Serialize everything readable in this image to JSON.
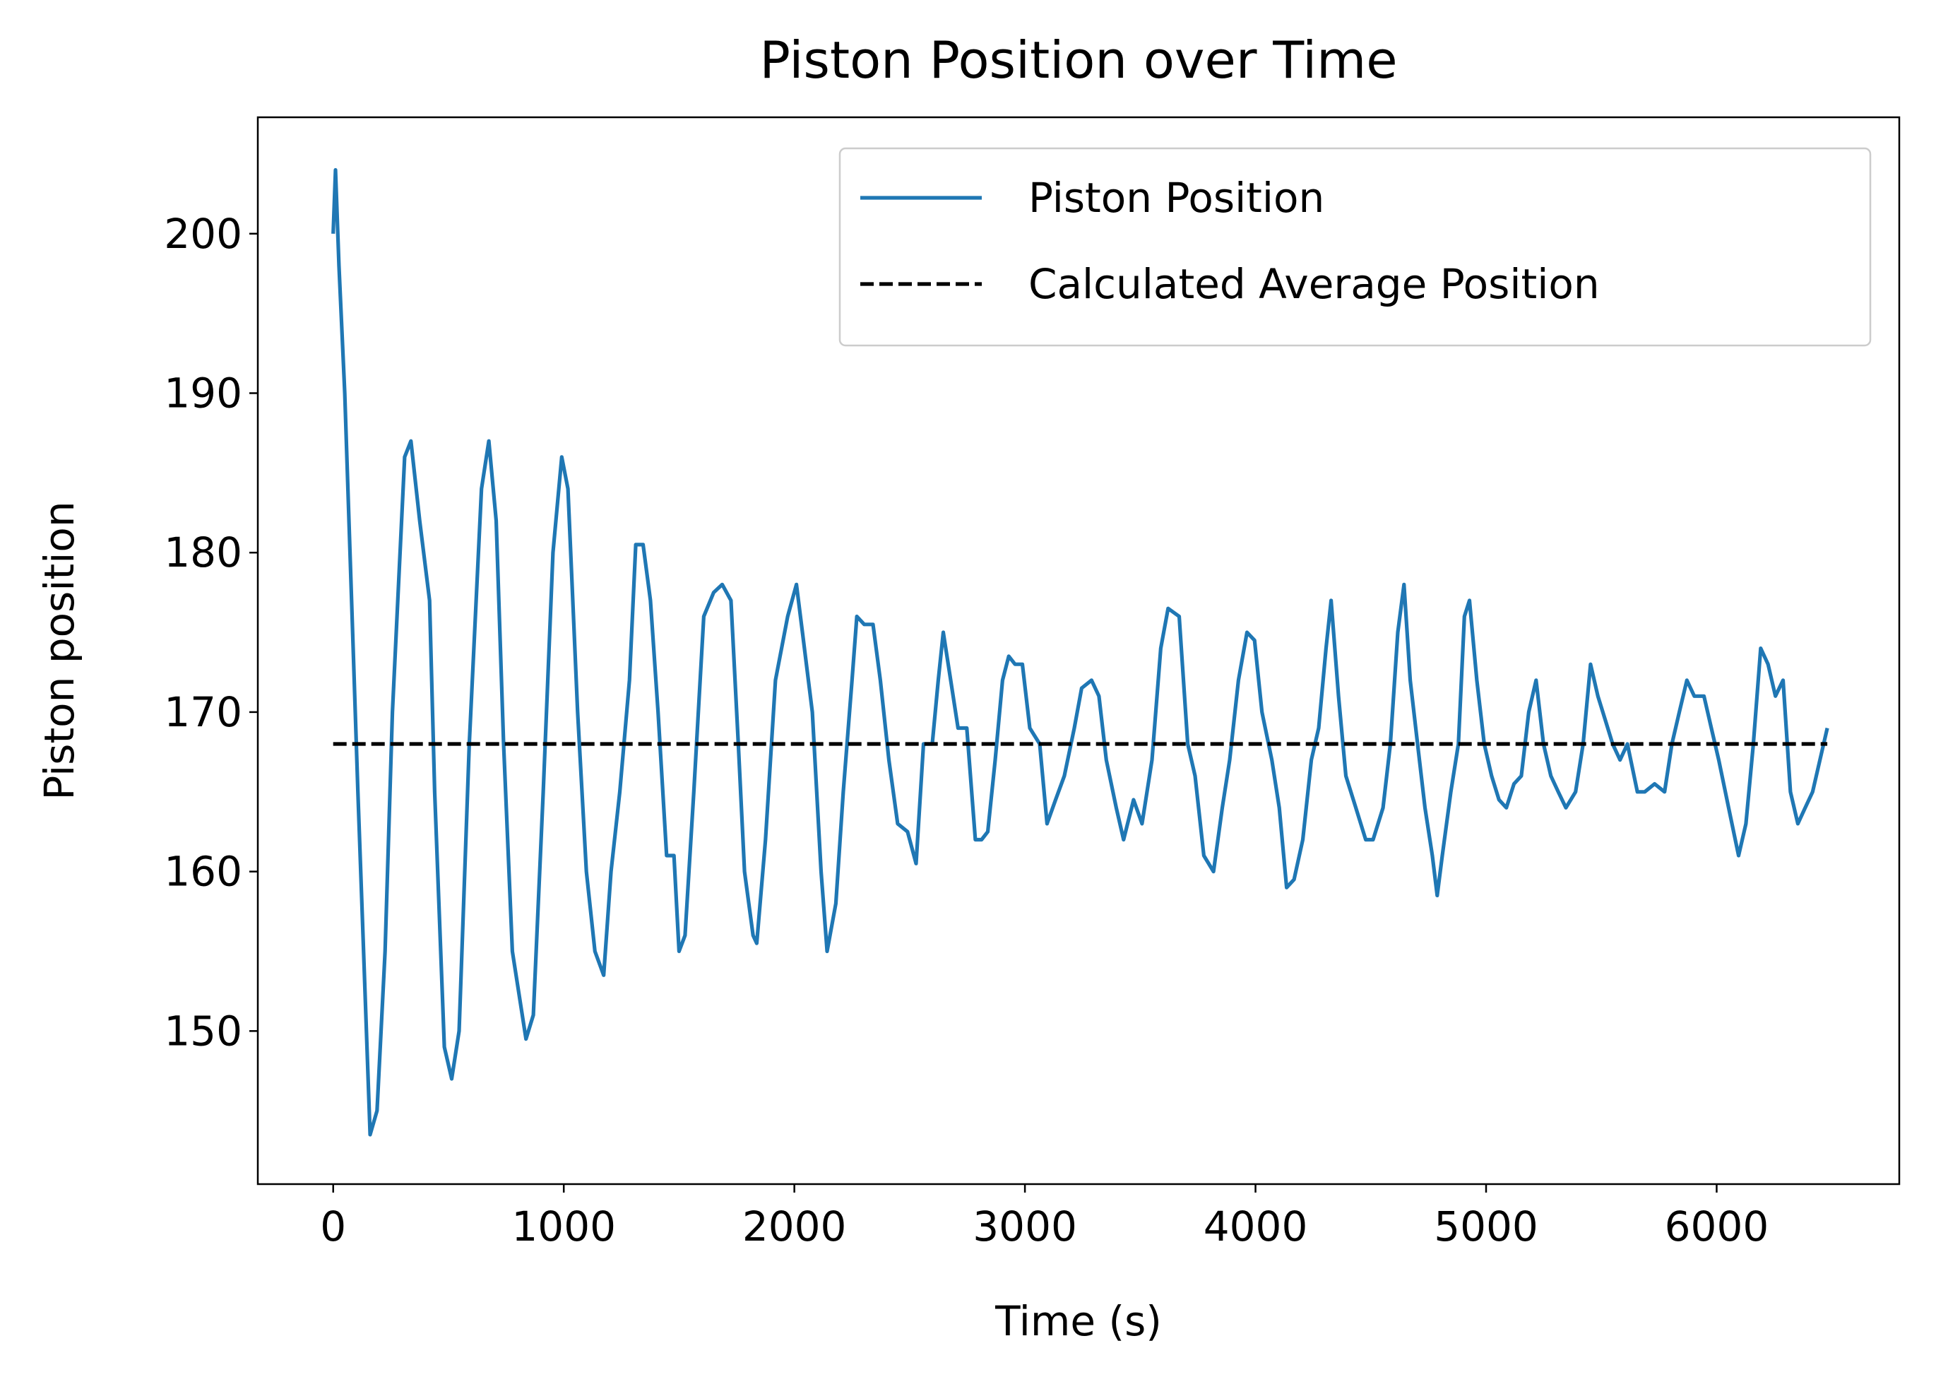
{
  "chart_data": {
    "type": "line",
    "title": "Piston Position over Time",
    "xlabel": "Time (s)",
    "ylabel": "Piston position",
    "xlim": [
      -327,
      6792
    ],
    "ylim": [
      140.4,
      207.3
    ],
    "xticks": [
      0,
      1000,
      2000,
      3000,
      4000,
      5000,
      6000
    ],
    "yticks": [
      150,
      160,
      170,
      180,
      190,
      200
    ],
    "legend": "upper right",
    "series": [
      {
        "name": "Piston Position",
        "color": "#1f77b4",
        "style": "solid",
        "x": [
          0,
          10,
          25,
          50,
          107,
          160,
          190,
          225,
          257,
          310,
          337,
          375,
          418,
          440,
          482,
          514,
          546,
          590,
          643,
          675,
          707,
          739,
          777,
          836,
          868,
          911,
          953,
          991,
          1018,
          1060,
          1098,
          1135,
          1173,
          1205,
          1243,
          1285,
          1312,
          1344,
          1376,
          1409,
          1446,
          1478,
          1500,
          1526,
          1564,
          1607,
          1650,
          1687,
          1725,
          1757,
          1784,
          1821,
          1837,
          1875,
          1918,
          1971,
          2009,
          2035,
          2078,
          2116,
          2142,
          2180,
          2212,
          2250,
          2271,
          2303,
          2341,
          2373,
          2410,
          2448,
          2491,
          2528,
          2560,
          2598,
          2624,
          2646,
          2678,
          2710,
          2748,
          2785,
          2812,
          2839,
          2871,
          2903,
          2930,
          2957,
          2989,
          3021,
          3064,
          3096,
          3133,
          3171,
          3214,
          3246,
          3289,
          3321,
          3353,
          3396,
          3428,
          3471,
          3508,
          3551,
          3589,
          3621,
          3669,
          3706,
          3738,
          3776,
          3818,
          3856,
          3888,
          3926,
          3963,
          3996,
          4028,
          4071,
          4103,
          4135,
          4167,
          4205,
          4242,
          4274,
          4306,
          4328,
          4360,
          4392,
          4435,
          4478,
          4510,
          4553,
          4585,
          4617,
          4644,
          4671,
          4703,
          4735,
          4767,
          4788,
          4810,
          4847,
          4880,
          4906,
          4928,
          4960,
          4992,
          5024,
          5056,
          5088,
          5121,
          5153,
          5185,
          5217,
          5249,
          5281,
          5313,
          5346,
          5388,
          5421,
          5453,
          5485,
          5517,
          5549,
          5581,
          5613,
          5656,
          5688,
          5731,
          5774,
          5806,
          5838,
          5871,
          5903,
          5945,
          5977,
          6009,
          6052,
          6095,
          6127,
          6159,
          6191,
          6223,
          6255,
          6288,
          6320,
          6352,
          6384,
          6416,
          6448,
          6480
        ],
        "values": [
          200,
          204,
          198,
          190,
          165,
          143.5,
          145,
          155,
          170,
          186,
          187,
          182,
          177,
          165,
          149,
          147,
          150,
          168,
          184,
          187,
          182,
          168,
          155,
          149.5,
          151,
          165,
          180,
          186,
          184,
          170,
          160,
          155,
          153.5,
          160,
          165,
          172,
          180.5,
          180.5,
          177,
          170,
          161,
          161,
          155,
          156,
          165,
          176,
          177.5,
          178,
          177,
          168,
          160,
          156,
          155.5,
          162,
          172,
          176,
          178,
          175,
          170,
          160,
          155,
          158,
          165,
          172,
          176,
          175.5,
          175.5,
          172,
          167,
          163,
          162.5,
          160.5,
          168,
          168,
          172,
          175,
          172,
          169,
          169,
          162,
          162,
          162.5,
          167,
          172,
          173.5,
          173,
          173,
          169,
          168,
          163,
          164.5,
          166,
          169,
          171.5,
          172,
          171,
          167,
          164,
          162,
          164.5,
          163,
          167,
          174,
          176.5,
          176,
          168,
          166,
          161,
          160,
          164,
          167,
          172,
          175,
          174.5,
          170,
          167,
          164,
          159,
          159.5,
          162,
          167,
          169,
          174,
          177,
          171,
          166,
          164,
          162,
          162,
          164,
          168,
          175,
          178,
          172,
          168,
          164,
          161,
          158.5,
          161,
          165,
          168,
          176,
          177,
          172,
          168,
          166,
          164.5,
          164,
          165.5,
          166,
          170,
          172,
          168,
          166,
          165,
          164,
          165,
          168,
          173,
          171,
          169.5,
          168,
          167,
          168,
          165,
          165,
          165.5,
          165,
          168,
          170,
          172,
          171,
          171,
          169,
          167,
          164,
          161,
          163,
          168,
          174,
          173,
          171,
          172,
          165,
          163,
          164,
          165,
          167,
          169
        ]
      },
      {
        "name": "Calculated Average Position",
        "color": "#000000",
        "style": "dashed",
        "x": [
          0,
          6480
        ],
        "values": [
          168,
          168
        ]
      }
    ]
  }
}
